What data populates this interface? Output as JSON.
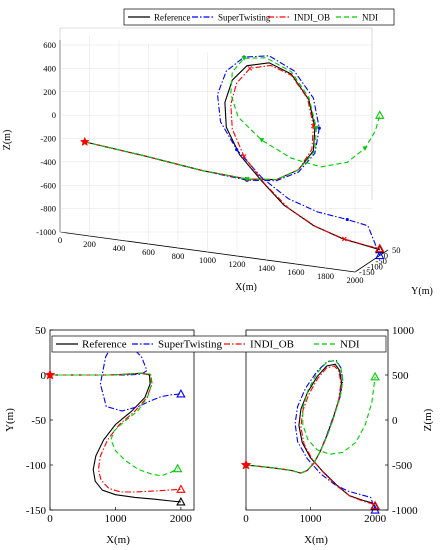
{
  "figure": {
    "legend": {
      "entries": [
        {
          "label": "Reference",
          "color": "#000000",
          "dash": "solid",
          "marker": "none"
        },
        {
          "label": "SuperTwisting",
          "color": "#0000ff",
          "dash": "dashdot",
          "marker": "dot"
        },
        {
          "label": "INDI_OB",
          "color": "#ff0000",
          "dash": "dashdot",
          "marker": "x"
        },
        {
          "label": "NDI",
          "color": "#00cc00",
          "dash": "dashed",
          "marker": "triangle"
        }
      ]
    }
  },
  "chart_data": [
    {
      "type": "line",
      "id": "panel-3d",
      "xlabel": "X(m)",
      "ylabel": "Y(m)",
      "zlabel": "Z(m)",
      "xlim": [
        0,
        2000
      ],
      "ylim": [
        -150,
        50
      ],
      "zlim": [
        -1000,
        600
      ],
      "x_ticks": [
        "0",
        "200",
        "400",
        "600",
        "800",
        "1000",
        "1200",
        "1400",
        "1600",
        "1800",
        "2000"
      ],
      "y_ticks": [
        "50",
        "0",
        "-50",
        "-100",
        "-150"
      ],
      "z_ticks": [
        "600",
        "400",
        "200",
        "0",
        "-200",
        "-400",
        "-600",
        "-800",
        "-1000"
      ],
      "legend_position": "top",
      "series": [
        {
          "name": "Reference",
          "color": "#000000",
          "x": [
            0,
            400,
            800,
            1100,
            1300,
            1450,
            1550,
            1560,
            1520,
            1400,
            1250,
            1100,
            1000,
            950,
            960,
            1050,
            1200,
            1350,
            1550,
            1750,
            1900,
            2000
          ],
          "z": [
            -370,
            -420,
            -480,
            -500,
            -470,
            -360,
            -180,
            20,
            250,
            450,
            520,
            470,
            330,
            130,
            -80,
            -300,
            -500,
            -680,
            -820,
            -900,
            -930,
            -950
          ]
        },
        {
          "name": "SuperTwisting",
          "color": "#0000ff",
          "x": [
            0,
            400,
            800,
            1100,
            1300,
            1450,
            1560,
            1590,
            1550,
            1420,
            1250,
            1080,
            960,
            900,
            920,
            1030,
            1200,
            1380,
            1580,
            1780,
            1920,
            2000
          ],
          "z": [
            -370,
            -420,
            -480,
            -510,
            -480,
            -380,
            -200,
            20,
            270,
            480,
            580,
            540,
            400,
            190,
            -40,
            -260,
            -470,
            -620,
            -700,
            -730,
            -760,
            -1000
          ]
        },
        {
          "name": "INDI_OB",
          "color": "#ff0000",
          "x": [
            0,
            400,
            800,
            1100,
            1300,
            1450,
            1540,
            1550,
            1510,
            1400,
            1260,
            1120,
            1030,
            990,
            1000,
            1080,
            1220,
            1380,
            1570,
            1760,
            1910,
            2000
          ],
          "z": [
            -370,
            -420,
            -480,
            -500,
            -470,
            -360,
            -170,
            30,
            260,
            440,
            500,
            450,
            310,
            120,
            -90,
            -310,
            -520,
            -700,
            -830,
            -900,
            -930,
            -940
          ]
        },
        {
          "name": "NDI",
          "color": "#00cc00",
          "x": [
            0,
            400,
            800,
            1100,
            1300,
            1450,
            1560,
            1570,
            1520,
            1400,
            1230,
            1080,
            1000,
            990,
            1040,
            1200,
            1400,
            1600,
            1780,
            1900,
            1970,
            2000
          ],
          "z": [
            -370,
            -420,
            -480,
            -500,
            -470,
            -360,
            -180,
            20,
            270,
            470,
            560,
            530,
            400,
            210,
            20,
            -150,
            -270,
            -310,
            -240,
            -100,
            60,
            200
          ]
        }
      ]
    },
    {
      "type": "line",
      "id": "panel-xy",
      "xlabel": "X(m)",
      "ylabel": "Y(m)",
      "xlim": [
        0,
        2200
      ],
      "ylim": [
        -150,
        50
      ],
      "x_ticks": [
        "0",
        "1000",
        "2000"
      ],
      "y_ticks": [
        "50",
        "0",
        "-50",
        "-100",
        "-150"
      ],
      "series": [
        {
          "name": "Reference",
          "color": "#000000",
          "x": [
            0,
            200,
            500,
            900,
            1200,
            1400,
            1520,
            1530,
            1450,
            1250,
            1000,
            820,
            700,
            660,
            690,
            800,
            1000,
            1300,
            1600,
            1850,
            2000
          ],
          "y": [
            0,
            0,
            0,
            0,
            1,
            2,
            0,
            -10,
            -25,
            -40,
            -55,
            -72,
            -90,
            -105,
            -118,
            -128,
            -133,
            -136,
            -138,
            -140,
            -141
          ]
        },
        {
          "name": "SuperTwisting",
          "color": "#0000ff",
          "x": [
            0,
            200,
            500,
            900,
            1200,
            1400,
            1480,
            1400,
            1200,
            1000,
            850,
            770,
            860,
            1100,
            1350,
            1560,
            1700,
            1850,
            2000
          ],
          "y": [
            0,
            0,
            0,
            0,
            0,
            1,
            5,
            20,
            35,
            40,
            20,
            -10,
            -35,
            -40,
            -35,
            -28,
            -24,
            -22,
            -21
          ]
        },
        {
          "name": "INDI_OB",
          "color": "#ff0000",
          "x": [
            0,
            200,
            500,
            900,
            1200,
            1400,
            1540,
            1560,
            1480,
            1300,
            1060,
            880,
            770,
            740,
            780,
            900,
            1080,
            1300,
            1560,
            1800,
            2000
          ],
          "y": [
            0,
            0,
            0,
            0,
            1,
            2,
            0,
            -10,
            -25,
            -40,
            -55,
            -72,
            -90,
            -105,
            -117,
            -126,
            -130,
            -130,
            -129,
            -128,
            -127
          ]
        },
        {
          "name": "NDI",
          "color": "#00cc00",
          "x": [
            0,
            200,
            500,
            900,
            1200,
            1400,
            1530,
            1550,
            1490,
            1340,
            1130,
            980,
            930,
            1000,
            1150,
            1350,
            1550,
            1700,
            1850,
            1950
          ],
          "y": [
            0,
            0,
            0,
            0,
            1,
            2,
            1,
            -10,
            -25,
            -40,
            -52,
            -62,
            -72,
            -84,
            -95,
            -105,
            -110,
            -112,
            -108,
            -104
          ]
        }
      ]
    },
    {
      "type": "line",
      "id": "panel-xz",
      "xlabel": "X(m)",
      "ylabel": "Z(m)",
      "xlim": [
        0,
        2200
      ],
      "ylim": [
        -1000,
        1000
      ],
      "x_ticks": [
        "0",
        "1000",
        "2000"
      ],
      "y_ticks": [
        "1000",
        "500",
        "0",
        "-500",
        "-1000"
      ],
      "series": [
        {
          "name": "Reference",
          "color": "#000000",
          "x": [
            0,
            400,
            700,
            850,
            950,
            1050,
            1150,
            1250,
            1350,
            1450,
            1480,
            1450,
            1380,
            1250,
            1100,
            950,
            850,
            820,
            870,
            1000,
            1200,
            1400,
            1600,
            1800,
            1950,
            2000
          ],
          "z": [
            -500,
            -530,
            -560,
            -590,
            -560,
            -480,
            -350,
            -180,
            20,
            250,
            420,
            550,
            620,
            600,
            480,
            300,
            120,
            -60,
            -250,
            -420,
            -580,
            -720,
            -840,
            -890,
            -920,
            -960
          ]
        },
        {
          "name": "SuperTwisting",
          "color": "#0000ff",
          "x": [
            0,
            400,
            700,
            850,
            950,
            1050,
            1150,
            1250,
            1350,
            1460,
            1500,
            1470,
            1400,
            1260,
            1100,
            920,
            800,
            760,
            800,
            950,
            1160,
            1380,
            1580,
            1780,
            1930,
            2000
          ],
          "z": [
            -500,
            -530,
            -560,
            -590,
            -560,
            -480,
            -350,
            -170,
            30,
            260,
            440,
            580,
            660,
            650,
            540,
            350,
            150,
            -40,
            -240,
            -430,
            -600,
            -720,
            -790,
            -830,
            -860,
            -1000
          ]
        },
        {
          "name": "INDI_OB",
          "color": "#ff0000",
          "x": [
            0,
            400,
            700,
            850,
            950,
            1050,
            1150,
            1250,
            1350,
            1440,
            1470,
            1440,
            1370,
            1250,
            1110,
            970,
            880,
            850,
            900,
            1030,
            1220,
            1420,
            1620,
            1810,
            1950,
            2000
          ],
          "z": [
            -500,
            -530,
            -560,
            -590,
            -560,
            -480,
            -350,
            -190,
            10,
            240,
            410,
            540,
            600,
            580,
            460,
            280,
            100,
            -80,
            -270,
            -440,
            -600,
            -740,
            -850,
            -900,
            -930,
            -950
          ]
        },
        {
          "name": "NDI",
          "color": "#00cc00",
          "x": [
            0,
            400,
            700,
            850,
            950,
            1050,
            1150,
            1260,
            1360,
            1460,
            1500,
            1470,
            1390,
            1260,
            1100,
            960,
            880,
            880,
            960,
            1100,
            1300,
            1500,
            1700,
            1850,
            1950,
            2000
          ],
          "z": [
            -500,
            -530,
            -560,
            -590,
            -560,
            -480,
            -350,
            -170,
            30,
            260,
            440,
            580,
            660,
            650,
            520,
            330,
            130,
            -50,
            -220,
            -330,
            -380,
            -360,
            -250,
            -50,
            200,
            480
          ]
        }
      ]
    }
  ]
}
